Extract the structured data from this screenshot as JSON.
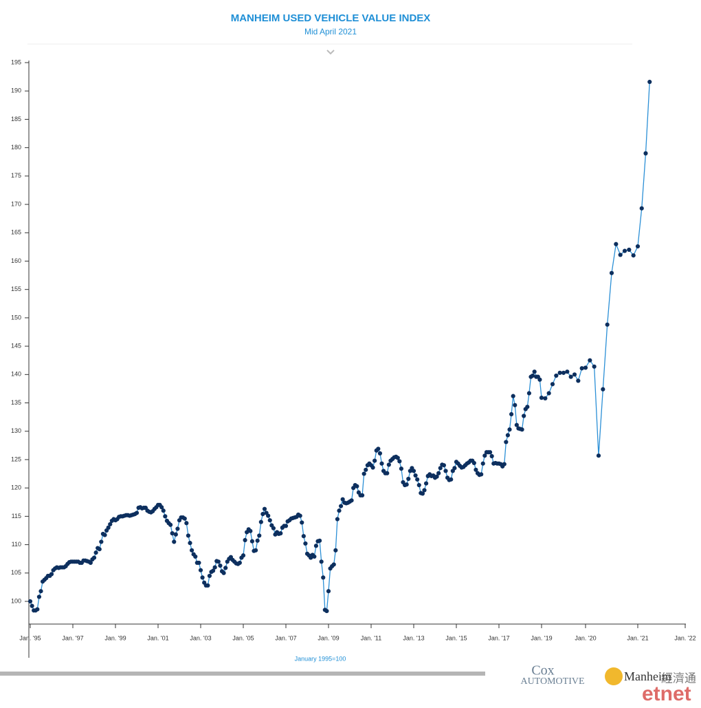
{
  "chart_data": {
    "type": "line",
    "title": "MANHEIM USED VEHICLE VALUE INDEX",
    "subtitle": "Mid April 2021",
    "note": "January 1995=100",
    "logos": {
      "cox": "Cox",
      "automotive": "Automotive",
      "manheim": "Manheim",
      "etnet": "etnet",
      "etnet_cn": "經濟通"
    },
    "line_color": "#2a8fd6",
    "marker_color": "#0d2f5e",
    "ylim": [
      96,
      195
    ],
    "yticks": [
      100,
      105,
      110,
      115,
      120,
      125,
      130,
      135,
      140,
      145,
      150,
      155,
      160,
      165,
      170,
      175,
      180,
      185,
      190,
      195
    ],
    "categories": [
      "Jan. '95",
      null,
      null,
      null,
      null,
      null,
      null,
      null,
      null,
      null,
      null,
      null,
      null,
      null,
      null,
      null,
      null,
      null,
      null,
      null,
      null,
      null,
      null,
      null,
      "Jan. '97",
      null,
      null,
      null,
      null,
      null,
      null,
      null,
      null,
      null,
      null,
      null,
      null,
      null,
      null,
      null,
      null,
      null,
      null,
      null,
      null,
      null,
      null,
      null,
      "Jan. '99",
      null,
      null,
      null,
      null,
      null,
      null,
      null,
      null,
      null,
      null,
      null,
      null,
      null,
      null,
      null,
      null,
      null,
      null,
      null,
      null,
      null,
      null,
      null,
      "Jan. '01",
      null,
      null,
      null,
      null,
      null,
      null,
      null,
      null,
      null,
      null,
      null,
      null,
      null,
      null,
      null,
      null,
      null,
      null,
      null,
      null,
      null,
      null,
      null,
      "Jan. '03",
      null,
      null,
      null,
      null,
      null,
      null,
      null,
      null,
      null,
      null,
      null,
      null,
      null,
      null,
      null,
      null,
      null,
      null,
      null,
      null,
      null,
      null,
      null,
      "Jan. '05",
      null,
      null,
      null,
      null,
      null,
      null,
      null,
      null,
      null,
      null,
      null,
      null,
      null,
      null,
      null,
      null,
      null,
      null,
      null,
      null,
      null,
      null,
      null,
      "Jan. '07",
      null,
      null,
      null,
      null,
      null,
      null,
      null,
      null,
      null,
      null,
      null,
      null,
      null,
      null,
      null,
      null,
      null,
      null,
      null,
      null,
      null,
      null,
      null,
      "Jan. '09",
      null,
      null,
      null,
      null,
      null,
      null,
      null,
      null,
      null,
      null,
      null,
      null,
      null,
      null,
      null,
      null,
      null,
      null,
      null,
      null,
      null,
      null,
      null,
      "Jan. '11",
      null,
      null,
      null,
      null,
      null,
      null,
      null,
      null,
      null,
      null,
      null,
      null,
      null,
      null,
      null,
      null,
      null,
      null,
      null,
      null,
      null,
      null,
      null,
      "Jan. '13",
      null,
      null,
      null,
      null,
      null,
      null,
      null,
      null,
      null,
      null,
      null,
      null,
      null,
      null,
      null,
      null,
      null,
      null,
      null,
      null,
      null,
      null,
      null,
      "Jan. '15",
      null,
      null,
      null,
      null,
      null,
      null,
      null,
      null,
      null,
      null,
      null,
      null,
      null,
      null,
      null,
      null,
      null,
      null,
      null,
      null,
      null,
      null,
      null,
      "Jan. '17",
      null,
      null,
      null,
      null,
      null,
      null,
      null,
      null,
      null,
      null,
      null,
      null,
      null,
      null,
      null,
      null,
      null,
      null,
      null,
      null,
      null,
      null,
      null,
      "Jan. '19",
      null,
      null,
      null,
      null,
      null,
      null,
      null,
      null,
      null,
      null,
      null,
      "Jan. '20",
      null,
      null,
      null,
      null,
      null,
      null,
      null,
      null,
      null,
      null,
      null,
      "Jan. '21",
      null,
      null,
      null,
      null,
      null,
      null,
      null,
      null,
      null,
      null,
      null,
      "Jan. '22"
    ],
    "values": [
      100,
      99.2,
      98.4,
      98.4,
      98.6,
      100.8,
      101.8,
      103.5,
      103.8,
      104.1,
      104.5,
      104.5,
      104.8,
      105.5,
      105.8,
      106,
      105.9,
      106,
      106,
      106,
      106.2,
      106.6,
      106.9,
      107,
      107,
      107,
      107,
      107,
      106.8,
      106.8,
      107.2,
      107.2,
      107.1,
      107,
      106.8,
      107.4,
      107.7,
      108.6,
      109.4,
      109.2,
      110.5,
      111.9,
      111.7,
      112.5,
      113,
      113.6,
      114.2,
      114.5,
      114.3,
      114.5,
      114.9,
      115,
      115,
      115.1,
      115.2,
      115.2,
      115.1,
      115.2,
      115.3,
      115.4,
      115.6,
      116.5,
      116.6,
      116.4,
      116.5,
      116.5,
      116,
      115.8,
      115.7,
      115.9,
      116.3,
      116.6,
      117,
      117,
      116.6,
      116,
      115,
      114.2,
      113.8,
      113.5,
      112,
      110.5,
      111.8,
      112.8,
      114.3,
      114.8,
      114.8,
      114.6,
      113.8,
      111.6,
      110.3,
      109,
      108.3,
      107.9,
      106.8,
      106.8,
      105.5,
      104.2,
      103.3,
      102.8,
      102.8,
      104.5,
      105.2,
      105.4,
      106,
      107.1,
      107,
      106.3,
      105.3,
      105,
      105.9,
      107,
      107.5,
      107.8,
      107.3,
      107,
      106.7,
      106.6,
      106.8,
      107.7,
      108.1,
      110.8,
      112.2,
      112.7,
      112.4,
      110.6,
      108.9,
      109,
      110.7,
      111.6,
      114,
      115.4,
      116.3,
      115.6,
      115.1,
      114.3,
      113.4,
      112.9,
      111.8,
      112.2,
      111.9,
      112,
      113,
      113.3,
      113.3,
      114.1,
      114.3,
      114.6,
      114.7,
      114.8,
      114.9,
      115.3,
      115.1,
      113.9,
      111.5,
      110.2,
      108.4,
      108.1,
      107.7,
      108.2,
      107.9,
      109.8,
      110.6,
      110.7,
      107,
      104.2,
      98.5,
      98.3,
      101.8,
      105.8,
      106.2,
      106.5,
      109,
      114.5,
      116,
      116.8,
      118,
      117.4,
      117.3,
      117.4,
      117.6,
      117.8,
      120,
      120.5,
      120.3,
      119.2,
      118.7,
      118.7,
      122.5,
      123.2,
      124,
      124.3,
      124,
      123.6,
      124.8,
      126.6,
      126.9,
      126.1,
      124.3,
      123,
      122.6,
      122.6,
      124.1,
      124.8,
      125.1,
      125.4,
      125.5,
      125.3,
      124.7,
      123.4,
      121,
      120.5,
      120.6,
      121.6,
      123,
      123.5,
      123,
      122.2,
      121.5,
      120.5,
      119.1,
      119,
      119.6,
      120.8,
      122.1,
      122.4,
      122.1,
      122.2,
      121.8,
      122,
      122.6,
      123.5,
      124.1,
      124,
      123,
      121.8,
      121.4,
      121.5,
      123,
      123.5,
      124.6,
      124.3,
      123.9,
      123.6,
      123.7,
      124,
      124.3,
      124.5,
      124.8,
      124.8,
      124.4,
      123.2,
      122.6,
      122.3,
      122.4,
      124.3,
      125.7,
      126.3,
      126.3,
      126.3,
      125.6,
      124.3,
      124.4,
      124.3,
      124.3,
      124.2,
      123.8,
      124.2,
      128.1,
      129.3,
      130.3,
      133,
      136.2,
      134.6,
      131.1,
      130.5,
      130.4,
      130.3,
      132.7,
      133.9,
      134.3,
      136.7,
      139.6,
      139.8,
      140.5,
      139.6,
      139.6,
      139.1,
      135.9,
      135.8,
      136.7,
      138.3,
      139.8,
      140.3,
      140.3,
      140.5,
      139.6,
      140,
      138.9,
      141.1,
      141.2,
      142.5,
      141.4,
      125.7,
      137.4,
      148.8,
      157.9,
      163,
      161.1,
      161.8,
      162,
      161,
      162.6,
      169.3,
      179,
      191.6,
      null,
      null,
      null,
      null,
      null,
      null,
      null,
      null,
      null
    ]
  }
}
